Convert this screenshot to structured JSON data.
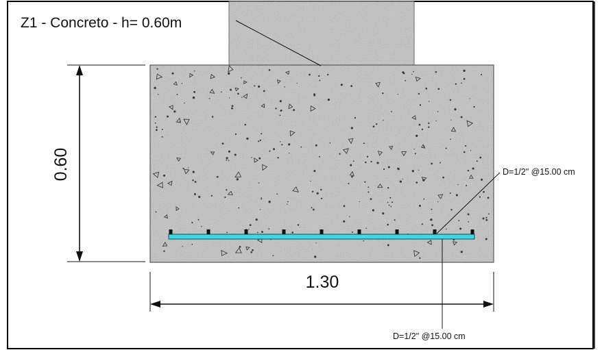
{
  "drawing": {
    "title": "Z1 - Concreto - h= 0.60m",
    "height_dimension": "0.60",
    "width_dimension": "1.30",
    "rebar_callout_right": "D=1/2\" @15.00 cm",
    "rebar_callout_bottom": "D=1/2\" @15.00 cm"
  },
  "colors": {
    "concrete": "#c4c4c4",
    "rebar": "#3fd7e6",
    "line": "#111111",
    "frame": "#000000"
  },
  "rebar_ties_count": 9
}
